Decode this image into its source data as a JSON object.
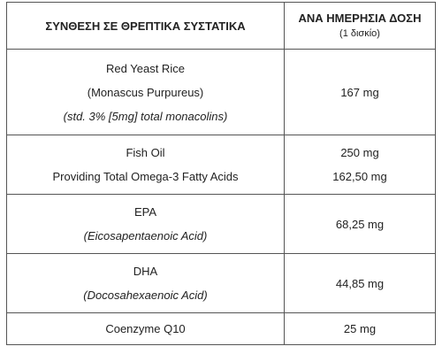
{
  "table": {
    "header": {
      "col1": "ΣΥΝΘΕΣΗ ΣΕ ΘΡΕΠΤΙΚΑ ΣΥΣΤΑΤΙΚΑ",
      "col2": "ΑΝΑ ΗΜΕΡΗΣΙΑ ΔΟΣΗ",
      "col2_sub": "(1 δισκίο)"
    },
    "rows": [
      {
        "name_lines": [
          "Red Yeast Rice",
          "(Monascus Purpureus)",
          "(std. 3% [5mg] total monacolins)"
        ],
        "values": [
          "167 mg"
        ]
      },
      {
        "name_lines": [
          "Fish Oil",
          "Providing Total Omega-3 Fatty Acids"
        ],
        "values": [
          "250 mg",
          "162,50 mg"
        ]
      },
      {
        "name_lines": [
          "EPA",
          "(Eicosapentaenoic Acid)"
        ],
        "values": [
          "68,25 mg"
        ]
      },
      {
        "name_lines": [
          "DHA",
          "(Docosahexaenoic Acid)"
        ],
        "values": [
          "44,85 mg"
        ]
      },
      {
        "name_lines": [
          "Coenzyme Q10"
        ],
        "values": [
          "25 mg"
        ]
      }
    ]
  }
}
